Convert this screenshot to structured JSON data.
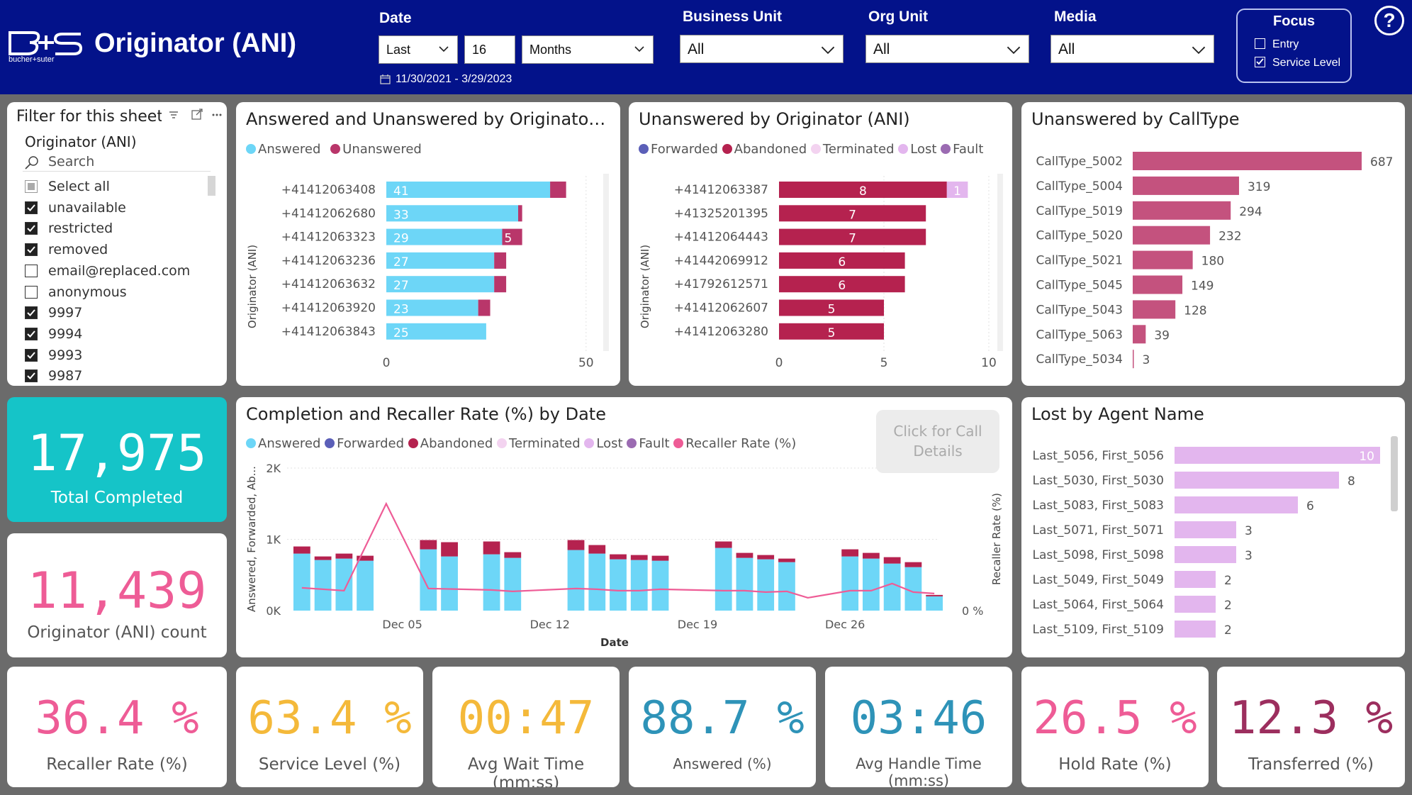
{
  "header": {
    "logo_text": "B+S",
    "logo_sub": "bucher+suter",
    "title": "Originator (ANI)",
    "date": {
      "label": "Date",
      "period": "Last",
      "count": "16",
      "unit": "Months",
      "range": "11/30/2021 - 3/29/2023"
    },
    "business_unit": {
      "label": "Business Unit",
      "value": "All"
    },
    "org_unit": {
      "label": "Org Unit",
      "value": "All"
    },
    "media": {
      "label": "Media",
      "value": "All"
    },
    "focus": {
      "title": "Focus",
      "options": [
        {
          "label": "Entry",
          "checked": false
        },
        {
          "label": "Service Level",
          "checked": true
        }
      ]
    },
    "help_label": "?"
  },
  "filter": {
    "title": "Filter for this sheet only",
    "field": "Originator (ANI)",
    "search_placeholder": "Search",
    "items": [
      {
        "label": "Select all",
        "state": "partial"
      },
      {
        "label": "unavailable",
        "state": "on"
      },
      {
        "label": "restricted",
        "state": "on"
      },
      {
        "label": "removed",
        "state": "on"
      },
      {
        "label": "email@replaced.com",
        "state": "off"
      },
      {
        "label": "anonymous",
        "state": "off"
      },
      {
        "label": "9997",
        "state": "on"
      },
      {
        "label": "9994",
        "state": "on"
      },
      {
        "label": "9993",
        "state": "on"
      },
      {
        "label": "9987",
        "state": "on"
      }
    ]
  },
  "kpis": {
    "total_completed": {
      "value": "17,975",
      "label": "Total Completed"
    },
    "ani_count": {
      "value": "11,439",
      "label": "Originator (ANI) count"
    },
    "recaller_rate": {
      "value": "36.4 %",
      "label": "Recaller Rate (%)"
    },
    "service_level": {
      "value": "63.4 %",
      "label": "Service Level (%)"
    },
    "avg_wait": {
      "value": "00:47",
      "label": "Avg Wait Time (mm:ss)"
    },
    "answered": {
      "value": "88.7 %",
      "label": "Answered (%)"
    },
    "avg_handle": {
      "value": "03:46",
      "label": "Avg Handle Time (mm:ss)"
    },
    "hold_rate": {
      "value": "26.5 %",
      "label": "Hold Rate (%)"
    },
    "transferred": {
      "value": "12.3 %",
      "label": "Transferred (%)"
    }
  },
  "click_button": "Click for Call Details",
  "colors": {
    "header": "#03128a",
    "answered": "#6dd6f7",
    "unanswered": "#b9366a",
    "forwarded": "#5b5fb8",
    "abandoned": "#b5224f",
    "terminated": "#f3d3f0",
    "lost": "#e3b6ee",
    "fault": "#9b6bb2",
    "recaller": "#ee5c96",
    "calltype": "#c4527e",
    "teal": "#15c4c8",
    "pink": "#ee5c96",
    "yellow": "#f4b93a",
    "blue": "#2e93b8"
  },
  "chart_data": [
    {
      "id": "answered_unanswered",
      "type": "bar",
      "title": "Answered and Unanswered by Originator (ANI)",
      "ylabel": "Originator (ANI)",
      "categories": [
        "+41412063408",
        "+41412062680",
        "+41412063323",
        "+41412063236",
        "+41412063632",
        "+41412063920",
        "+41412063843"
      ],
      "series": [
        {
          "name": "Answered",
          "values": [
            41,
            33,
            29,
            27,
            27,
            23,
            25
          ]
        },
        {
          "name": "Unanswered",
          "values": [
            4,
            1,
            5,
            3,
            3,
            3,
            0
          ]
        }
      ],
      "labels": [
        "41",
        "33",
        "29",
        "27",
        "27",
        "23",
        "25"
      ],
      "unanswered_labels": [
        "",
        "",
        "5",
        "",
        "",
        "",
        ""
      ],
      "xlim": [
        0,
        55
      ],
      "xticks": [
        0,
        50
      ]
    },
    {
      "id": "unanswered_originator",
      "type": "bar",
      "title": "Unanswered by Originator (ANI)",
      "ylabel": "Originator (ANI)",
      "legend": [
        "Forwarded",
        "Abandoned",
        "Terminated",
        "Lost",
        "Fault"
      ],
      "categories": [
        "+41412063387",
        "+41325201395",
        "+41412064443",
        "+41442069912",
        "+41792612571",
        "+41412062607",
        "+41412063280"
      ],
      "series": [
        {
          "name": "Abandoned",
          "values": [
            8,
            7,
            7,
            6,
            6,
            5,
            5
          ]
        },
        {
          "name": "Lost",
          "values": [
            1,
            0,
            0,
            0,
            0,
            0,
            0
          ]
        }
      ],
      "abandoned_labels": [
        "8",
        "7",
        "7",
        "6",
        "6",
        "5",
        "5"
      ],
      "lost_labels": [
        "1",
        "",
        "",
        "",
        "",
        "",
        ""
      ],
      "xlim": [
        0,
        10
      ],
      "xticks": [
        0,
        5,
        10
      ]
    },
    {
      "id": "calltype",
      "type": "bar",
      "title": "Unanswered by CallType",
      "categories": [
        "CallType_5002",
        "CallType_5004",
        "CallType_5019",
        "CallType_5020",
        "CallType_5021",
        "CallType_5045",
        "CallType_5043",
        "CallType_5063",
        "CallType_5034"
      ],
      "values": [
        687,
        319,
        294,
        232,
        180,
        149,
        128,
        39,
        3
      ],
      "labels": [
        "687",
        "319",
        "294",
        "232",
        "180",
        "149",
        "128",
        "39",
        "3"
      ]
    },
    {
      "id": "completion",
      "type": "bar",
      "title": "Completion and Recaller Rate (%) by Date",
      "xlabel": "Date",
      "ylabel": "Answered, Forwarded, Ab...",
      "y2label": "Recaller Rate (%)",
      "legend": [
        "Answered",
        "Forwarded",
        "Abandoned",
        "Terminated",
        "Lost",
        "Fault",
        "Recaller Rate (%)"
      ],
      "ylim": [
        0,
        2000
      ],
      "yticks": [
        "0K",
        "1K",
        "2K"
      ],
      "y2tick": "0 %",
      "xticks": [
        {
          "index": 5,
          "label": "Dec 05"
        },
        {
          "index": 12,
          "label": "Dec 12"
        },
        {
          "index": 19,
          "label": "Dec 19"
        },
        {
          "index": 26,
          "label": "Dec 26"
        }
      ],
      "series": [
        {
          "name": "Answered",
          "values": [
            800,
            710,
            730,
            700,
            0,
            0,
            860,
            760,
            0,
            790,
            740,
            0,
            0,
            850,
            800,
            720,
            710,
            700,
            0,
            0,
            880,
            740,
            720,
            680,
            0,
            0,
            760,
            730,
            660,
            610,
            200
          ]
        },
        {
          "name": "Abandoned",
          "values": [
            100,
            50,
            70,
            70,
            0,
            0,
            130,
            200,
            0,
            180,
            80,
            0,
            0,
            140,
            120,
            70,
            70,
            70,
            0,
            0,
            90,
            70,
            60,
            50,
            0,
            0,
            100,
            80,
            90,
            70,
            20
          ]
        }
      ],
      "recaller": [
        320,
        0,
        280,
        0,
        1500,
        0,
        310,
        0,
        0,
        290,
        270,
        0,
        0,
        310,
        300,
        280,
        280,
        300,
        0,
        0,
        280,
        280,
        260,
        270,
        180,
        0,
        280,
        280,
        380,
        260,
        240
      ]
    },
    {
      "id": "lost_agent",
      "type": "bar",
      "title": "Lost by Agent Name",
      "categories": [
        "Last_5056, First_5056",
        "Last_5030, First_5030",
        "Last_5083, First_5083",
        "Last_5071, First_5071",
        "Last_5098, First_5098",
        "Last_5049, First_5049",
        "Last_5064, First_5064",
        "Last_5109, First_5109"
      ],
      "values": [
        10,
        8,
        6,
        3,
        3,
        2,
        2,
        2
      ],
      "labels": [
        "10",
        "8",
        "6",
        "3",
        "3",
        "2",
        "2",
        "2"
      ]
    }
  ]
}
